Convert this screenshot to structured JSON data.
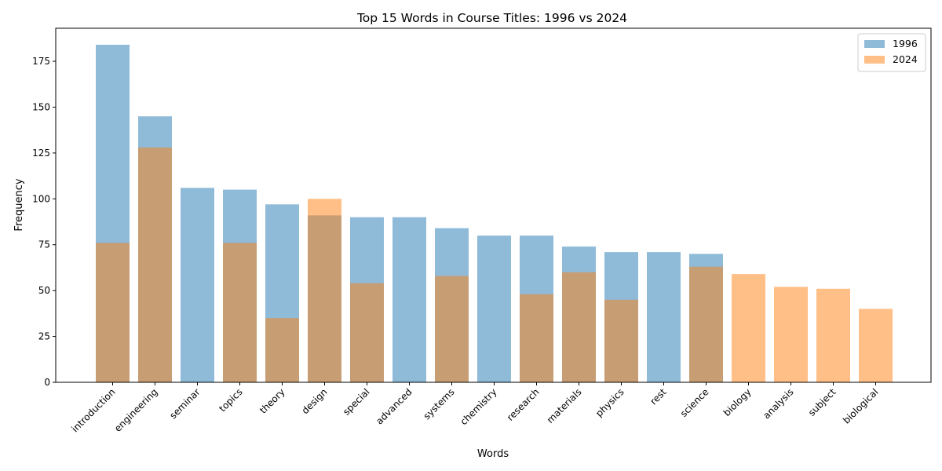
{
  "chart_data": {
    "type": "bar",
    "title": "Top 15 Words in Course Titles: 1996 vs 2024",
    "xlabel": "Words",
    "ylabel": "Frequency",
    "ylim": [
      0,
      193
    ],
    "yticks": [
      0,
      25,
      50,
      75,
      100,
      125,
      150,
      175
    ],
    "grid": false,
    "legend_position": "top-right",
    "categories": [
      "introduction",
      "engineering",
      "seminar",
      "topics",
      "theory",
      "design",
      "special",
      "advanced",
      "systems",
      "chemistry",
      "research",
      "materials",
      "physics",
      "rest",
      "science",
      "biology",
      "analysis",
      "subject",
      "biological"
    ],
    "series": [
      {
        "name": "1996",
        "color": "#1f77b4",
        "values": [
          184,
          145,
          106,
          105,
          97,
          91,
          90,
          90,
          84,
          80,
          80,
          74,
          71,
          71,
          70,
          null,
          null,
          null,
          null
        ]
      },
      {
        "name": "2024",
        "color": "#ff7f0e",
        "values": [
          76,
          128,
          null,
          76,
          35,
          100,
          54,
          null,
          58,
          null,
          48,
          60,
          45,
          null,
          63,
          59,
          52,
          51,
          40
        ]
      }
    ]
  }
}
